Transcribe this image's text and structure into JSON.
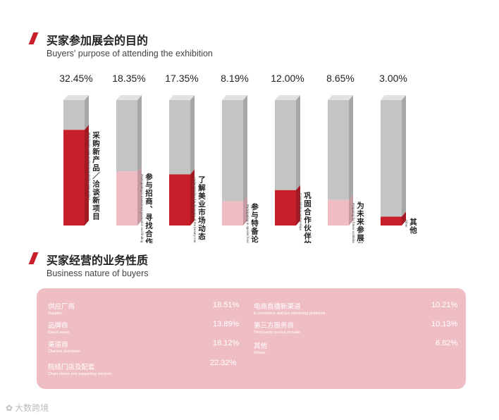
{
  "section1": {
    "title_cn": "买家参加展会的目的",
    "title_en": "Buyers' purpose of attending the exhibition"
  },
  "section2": {
    "title_cn": "买家经营的业务性质",
    "title_en": "Business nature of buyers"
  },
  "colors": {
    "accent_red": "#c8202a",
    "pink": "#f0bcc3",
    "grey": "#c4c4c4",
    "panel_pink": "#efbec5"
  },
  "chart_data": {
    "type": "bar",
    "title": "买家参加展会的目的",
    "subtitle": "Buyers' purpose of attending the exhibition",
    "unit": "%",
    "ylim": [
      0,
      100
    ],
    "categories": [
      {
        "cn": "采购新产品／洽谈新项目",
        "en": "Purchasing new product/negotiating new project",
        "value": 32.45,
        "label": "32.45%",
        "fill": "#c8202a"
      },
      {
        "cn": "参与招商、寻找合作伙伴",
        "en": "Participating in investment promotion and finding partners",
        "value": 18.35,
        "label": "18.35%",
        "fill": "#f0bcc3"
      },
      {
        "cn": "了解美业市场动态　对接行业优质资源",
        "en": "Understanding the dynamics of the beauty market, connecting quality resources",
        "value": 17.35,
        "label": "17.35%",
        "fill": "#c8202a"
      },
      {
        "cn": "参与特备论坛活动",
        "en": "Participating in special forum activities",
        "value": 8.19,
        "label": "8.19%",
        "fill": "#f0bcc3"
      },
      {
        "cn": "巩固合作伙伴的关系",
        "en": "Consolidating partnerships",
        "value": 12.0,
        "label": "12.00%",
        "fill": "#c8202a"
      },
      {
        "cn": "为未来参展做准备",
        "en": "Preparing for future exhibition",
        "value": 8.65,
        "label": "8.65%",
        "fill": "#f0bcc3"
      },
      {
        "cn": "其他",
        "en": "Other",
        "value": 3.0,
        "label": "3.00%",
        "fill": "#c8202a"
      }
    ]
  },
  "business": {
    "items": [
      {
        "cn": "供应厂商",
        "en": "Supplier",
        "value": "18.51%"
      },
      {
        "cn": "品牌商",
        "en": "Brand owner",
        "value": "13.89%"
      },
      {
        "cn": "渠道商",
        "en": "Channel distributor",
        "value": "18.12%"
      },
      {
        "cn": "院线门店及配套",
        "en": "Chain stores and supporting services",
        "value": "22.32%"
      },
      {
        "cn": "电商直播新渠道",
        "en": "E-commerce and live streaming platforms",
        "value": "10.21%"
      },
      {
        "cn": "第三方服务商",
        "en": "Third-party service provider",
        "value": "10.13%"
      },
      {
        "cn": "其他",
        "en": "Others",
        "value": "6.82%"
      }
    ]
  },
  "watermark": {
    "icon": "lotus-logo-icon",
    "text": "大数跨境"
  }
}
